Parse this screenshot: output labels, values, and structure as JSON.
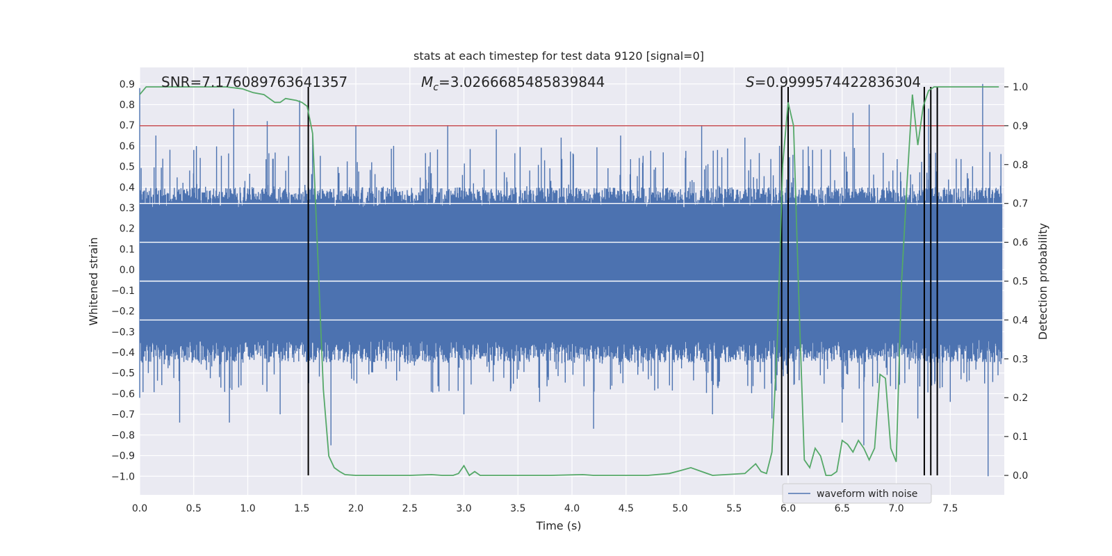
{
  "chart_data": {
    "type": "line",
    "title": "stats at each timestep for test data 9120 [signal=0]",
    "xlabel": "Time (s)",
    "ylabel_left": "Whitened strain",
    "ylabel_right": "Detection probability",
    "xlim": [
      0.0,
      8.0
    ],
    "ylim_left": [
      -1.09,
      0.98
    ],
    "ylim_right": [
      -0.05,
      1.05
    ],
    "x_ticks": [
      0.0,
      0.5,
      1.0,
      1.5,
      2.0,
      2.5,
      3.0,
      3.5,
      4.0,
      4.5,
      5.0,
      5.5,
      6.0,
      6.5,
      7.0,
      7.5
    ],
    "x_tick_labels": [
      "0.0",
      "0.5",
      "1.0",
      "1.5",
      "2.0",
      "2.5",
      "3.0",
      "3.5",
      "4.0",
      "4.5",
      "5.0",
      "5.5",
      "6.0",
      "6.5",
      "7.0",
      "7.5"
    ],
    "y_left_ticks": [
      0.9,
      0.8,
      0.7,
      0.6,
      0.5,
      0.4,
      0.3,
      0.2,
      0.1,
      0.0,
      -0.1,
      -0.2,
      -0.3,
      -0.4,
      -0.5,
      -0.6,
      -0.7,
      -0.8,
      -0.9,
      -1.0
    ],
    "y_left_tick_labels": [
      "0.9",
      "0.8",
      "0.7",
      "0.6",
      "0.5",
      "0.4",
      "0.3",
      "0.2",
      "0.1",
      "0.0",
      "−0.1",
      "−0.2",
      "−0.3",
      "−0.4",
      "−0.5",
      "−0.6",
      "−0.7",
      "−0.8",
      "−0.9",
      "−1.0"
    ],
    "y_right_ticks": [
      1.0,
      0.9,
      0.8,
      0.7,
      0.6,
      0.5,
      0.4,
      0.3,
      0.2,
      0.1,
      0.0
    ],
    "y_right_tick_labels": [
      "1.0",
      "0.9",
      "0.8",
      "0.7",
      "0.6",
      "0.5",
      "0.4",
      "0.3",
      "0.2",
      "0.1",
      "0.0"
    ],
    "annotations": {
      "snr": "SNR=7.176089763641357",
      "mc_symbol": "M",
      "mc_sub": "c",
      "mc_value": "=3.0266685485839844",
      "s_symbol": "S",
      "s_value": "=0.9999574422836304"
    },
    "threshold_prob": 0.9,
    "detection_lines_time": [
      1.56,
      5.94,
      6.0,
      7.26,
      7.32,
      7.38
    ],
    "waveform_envelope": {
      "name": "waveform with noise",
      "typical_min": -0.45,
      "typical_max": 0.4,
      "spike_max": [
        [
          0.0,
          0.88
        ],
        [
          0.15,
          0.65
        ],
        [
          0.5,
          0.58
        ],
        [
          0.87,
          0.78
        ],
        [
          1.18,
          0.72
        ],
        [
          1.48,
          0.82
        ],
        [
          1.6,
          0.65
        ],
        [
          2.0,
          0.7
        ],
        [
          2.35,
          0.6
        ],
        [
          2.85,
          0.7
        ],
        [
          3.3,
          0.68
        ],
        [
          3.9,
          0.64
        ],
        [
          4.45,
          0.65
        ],
        [
          5.2,
          0.7
        ],
        [
          5.6,
          0.64
        ],
        [
          5.92,
          0.6
        ],
        [
          6.0,
          0.74
        ],
        [
          6.6,
          0.76
        ],
        [
          6.75,
          0.8
        ],
        [
          7.3,
          0.78
        ],
        [
          7.8,
          0.9
        ]
      ],
      "spike_min": [
        [
          0.0,
          -0.62
        ],
        [
          0.37,
          -0.74
        ],
        [
          0.83,
          -0.74
        ],
        [
          1.3,
          -0.7
        ],
        [
          1.77,
          -0.85
        ],
        [
          3.0,
          -0.7
        ],
        [
          3.7,
          -0.64
        ],
        [
          4.2,
          -0.77
        ],
        [
          5.3,
          -0.7
        ],
        [
          5.85,
          -0.72
        ],
        [
          6.5,
          -0.74
        ],
        [
          6.7,
          -0.85
        ],
        [
          7.2,
          -0.72
        ],
        [
          7.5,
          -0.64
        ],
        [
          7.85,
          -1.0
        ]
      ]
    },
    "probability_series": {
      "name": "detection probability",
      "color": "#55a868",
      "x": [
        0.0,
        0.06,
        0.2,
        0.4,
        0.6,
        0.8,
        0.95,
        1.05,
        1.15,
        1.25,
        1.3,
        1.35,
        1.45,
        1.5,
        1.55,
        1.6,
        1.65,
        1.7,
        1.75,
        1.8,
        1.85,
        1.9,
        1.95,
        2.0,
        2.05,
        2.2,
        2.5,
        2.7,
        2.8,
        2.9,
        2.95,
        3.0,
        3.05,
        3.1,
        3.15,
        3.2,
        3.3,
        3.5,
        3.8,
        4.1,
        4.2,
        4.5,
        4.7,
        4.9,
        5.0,
        5.1,
        5.2,
        5.3,
        5.6,
        5.7,
        5.75,
        5.8,
        5.85,
        5.9,
        5.95,
        6.0,
        6.05,
        6.1,
        6.15,
        6.2,
        6.25,
        6.3,
        6.35,
        6.4,
        6.45,
        6.5,
        6.55,
        6.6,
        6.65,
        6.7,
        6.75,
        6.8,
        6.85,
        6.9,
        6.95,
        7.0,
        7.05,
        7.1,
        7.15,
        7.2,
        7.25,
        7.3,
        7.35,
        7.4,
        7.45,
        7.5,
        7.6,
        7.95
      ],
      "y": [
        0.98,
        1.0,
        1.0,
        1.0,
        1.0,
        1.0,
        0.995,
        0.985,
        0.98,
        0.96,
        0.96,
        0.97,
        0.965,
        0.96,
        0.95,
        0.88,
        0.55,
        0.22,
        0.05,
        0.02,
        0.01,
        0.002,
        0.001,
        0.0,
        0.0,
        0.0,
        0.0,
        0.002,
        0.0,
        0.0,
        0.005,
        0.025,
        0.0,
        0.01,
        0.0,
        0.0,
        0.0,
        0.0,
        0.0,
        0.002,
        0.0,
        0.0,
        0.0,
        0.005,
        0.012,
        0.02,
        0.01,
        0.0,
        0.005,
        0.03,
        0.01,
        0.005,
        0.06,
        0.35,
        0.8,
        0.96,
        0.9,
        0.45,
        0.04,
        0.02,
        0.07,
        0.05,
        0.0,
        0.0,
        0.01,
        0.09,
        0.08,
        0.06,
        0.09,
        0.07,
        0.04,
        0.07,
        0.26,
        0.25,
        0.07,
        0.035,
        0.5,
        0.75,
        0.98,
        0.85,
        0.95,
        0.99,
        1.0,
        1.0,
        1.0,
        1.0,
        1.0,
        1.0
      ]
    },
    "legend": {
      "label": "waveform with noise",
      "placement": "lower-right"
    },
    "grid": true
  }
}
